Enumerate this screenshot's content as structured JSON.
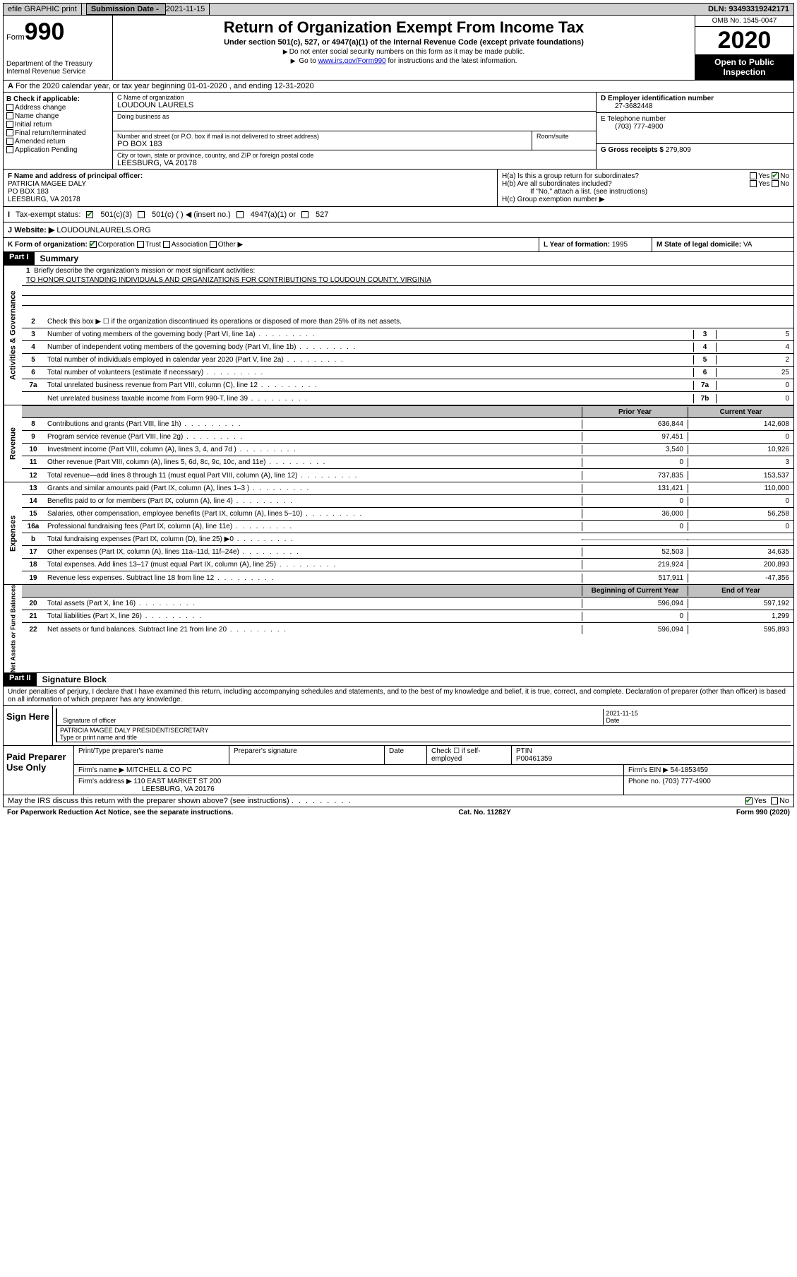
{
  "topbar": {
    "efile": "efile GRAPHIC print",
    "submission_label": "Submission Date - ",
    "submission_date": "2021-11-15",
    "dln_label": "DLN: ",
    "dln": "93493319242171"
  },
  "header": {
    "form_label": "Form",
    "form_num": "990",
    "dept": "Department of the Treasury\nInternal Revenue Service",
    "title": "Return of Organization Exempt From Income Tax",
    "subtitle": "Under section 501(c), 527, or 4947(a)(1) of the Internal Revenue Code (except private foundations)",
    "note1": "Do not enter social security numbers on this form as it may be made public.",
    "note2_pre": "Go to ",
    "note2_link": "www.irs.gov/Form990",
    "note2_post": " for instructions and the latest information.",
    "omb": "OMB No. 1545-0047",
    "year": "2020",
    "open": "Open to Public Inspection"
  },
  "row_a": {
    "text": "For the 2020 calendar year, or tax year beginning 01-01-2020    , and ending 12-31-2020"
  },
  "section_b": {
    "label": "B Check if applicable:",
    "opts": [
      "Address change",
      "Name change",
      "Initial return",
      "Final return/terminated",
      "Amended return",
      "Application Pending"
    ]
  },
  "section_c": {
    "name_label": "C Name of organization",
    "name": "LOUDOUN LAURELS",
    "dba_label": "Doing business as",
    "dba": "",
    "street_label": "Number and street (or P.O. box if mail is not delivered to street address)",
    "room_label": "Room/suite",
    "street": "PO BOX 183",
    "city_label": "City or town, state or province, country, and ZIP or foreign postal code",
    "city": "LEESBURG, VA  20178"
  },
  "section_d": {
    "ein_label": "D Employer identification number",
    "ein": "27-3682448",
    "phone_label": "E Telephone number",
    "phone": "(703) 777-4900",
    "gross_label": "G Gross receipts $ ",
    "gross": "279,809"
  },
  "section_f": {
    "label": "F  Name and address of principal officer:",
    "name": "PATRICIA MAGEE DALY",
    "addr1": "PO BOX 183",
    "addr2": "LEESBURG, VA  20178"
  },
  "section_h": {
    "ha": "H(a)  Is this a group return for subordinates?",
    "hb": "H(b)  Are all subordinates included?",
    "hb_note": "If \"No,\" attach a list. (see instructions)",
    "hc": "H(c)  Group exemption number ▶",
    "yes": "Yes",
    "no": "No"
  },
  "row_i": {
    "label": "Tax-exempt status:",
    "opt1": "501(c)(3)",
    "opt2": "501(c) (  ) ◀ (insert no.)",
    "opt3": "4947(a)(1) or",
    "opt4": "527"
  },
  "row_j": {
    "label": "Website: ▶",
    "val": "LOUDOUNLAURELS.ORG"
  },
  "row_k": {
    "label": "K Form of organization:",
    "opts": [
      "Corporation",
      "Trust",
      "Association",
      "Other ▶"
    ]
  },
  "row_l": {
    "label": "L Year of formation: ",
    "val": "1995"
  },
  "row_m": {
    "label": "M State of legal domicile: ",
    "val": "VA"
  },
  "parts": {
    "part1": "Part I",
    "summary": "Summary",
    "part2": "Part II",
    "sigblock": "Signature Block"
  },
  "summary": {
    "q1": "Briefly describe the organization's mission or most significant activities:",
    "mission": "TO HONOR OUTSTANDING INDIVIDUALS AND ORGANIZATIONS FOR CONTRIBUTIONS TO LOUDOUN COUNTY, VIRGINIA",
    "q2": "Check this box ▶ ☐  if the organization discontinued its operations or disposed of more than 25% of its net assets.",
    "lines": [
      {
        "n": "3",
        "t": "Number of voting members of the governing body (Part VI, line 1a)",
        "box": "3",
        "v": "5"
      },
      {
        "n": "4",
        "t": "Number of independent voting members of the governing body (Part VI, line 1b)",
        "box": "4",
        "v": "4"
      },
      {
        "n": "5",
        "t": "Total number of individuals employed in calendar year 2020 (Part V, line 2a)",
        "box": "5",
        "v": "2"
      },
      {
        "n": "6",
        "t": "Total number of volunteers (estimate if necessary)",
        "box": "6",
        "v": "25"
      },
      {
        "n": "7a",
        "t": "Total unrelated business revenue from Part VIII, column (C), line 12",
        "box": "7a",
        "v": "0"
      },
      {
        "n": "",
        "t": "Net unrelated business taxable income from Form 990-T, line 39",
        "box": "7b",
        "v": "0"
      }
    ],
    "col_prior": "Prior Year",
    "col_current": "Current Year",
    "revenue": [
      {
        "n": "8",
        "t": "Contributions and grants (Part VIII, line 1h)",
        "p": "636,844",
        "c": "142,608"
      },
      {
        "n": "9",
        "t": "Program service revenue (Part VIII, line 2g)",
        "p": "97,451",
        "c": "0"
      },
      {
        "n": "10",
        "t": "Investment income (Part VIII, column (A), lines 3, 4, and 7d )",
        "p": "3,540",
        "c": "10,926"
      },
      {
        "n": "11",
        "t": "Other revenue (Part VIII, column (A), lines 5, 6d, 8c, 9c, 10c, and 11e)",
        "p": "0",
        "c": "3"
      },
      {
        "n": "12",
        "t": "Total revenue—add lines 8 through 11 (must equal Part VIII, column (A), line 12)",
        "p": "737,835",
        "c": "153,537"
      }
    ],
    "expenses": [
      {
        "n": "13",
        "t": "Grants and similar amounts paid (Part IX, column (A), lines 1–3 )",
        "p": "131,421",
        "c": "110,000"
      },
      {
        "n": "14",
        "t": "Benefits paid to or for members (Part IX, column (A), line 4)",
        "p": "0",
        "c": "0"
      },
      {
        "n": "15",
        "t": "Salaries, other compensation, employee benefits (Part IX, column (A), lines 5–10)",
        "p": "36,000",
        "c": "56,258"
      },
      {
        "n": "16a",
        "t": "Professional fundraising fees (Part IX, column (A), line 11e)",
        "p": "0",
        "c": "0"
      },
      {
        "n": "b",
        "t": "Total fundraising expenses (Part IX, column (D), line 25) ▶0",
        "p": "",
        "c": "",
        "gray": true
      },
      {
        "n": "17",
        "t": "Other expenses (Part IX, column (A), lines 11a–11d, 11f–24e)",
        "p": "52,503",
        "c": "34,635"
      },
      {
        "n": "18",
        "t": "Total expenses. Add lines 13–17 (must equal Part IX, column (A), line 25)",
        "p": "219,924",
        "c": "200,893"
      },
      {
        "n": "19",
        "t": "Revenue less expenses. Subtract line 18 from line 12",
        "p": "517,911",
        "c": "-47,356"
      }
    ],
    "col_begin": "Beginning of Current Year",
    "col_end": "End of Year",
    "netassets": [
      {
        "n": "20",
        "t": "Total assets (Part X, line 16)",
        "p": "596,094",
        "c": "597,192"
      },
      {
        "n": "21",
        "t": "Total liabilities (Part X, line 26)",
        "p": "0",
        "c": "1,299"
      },
      {
        "n": "22",
        "t": "Net assets or fund balances. Subtract line 21 from line 20",
        "p": "596,094",
        "c": "595,893"
      }
    ],
    "sidebar1": "Activities & Governance",
    "sidebar2": "Revenue",
    "sidebar3": "Expenses",
    "sidebar4": "Net Assets or Fund Balances"
  },
  "sig": {
    "perjury": "Under penalties of perjury, I declare that I have examined this return, including accompanying schedules and statements, and to the best of my knowledge and belief, it is true, correct, and complete. Declaration of preparer (other than officer) is based on all information of which preparer has any knowledge.",
    "sign_here": "Sign Here",
    "sig_officer": "Signature of officer",
    "date_label": "Date",
    "sig_date": "2021-11-15",
    "officer_name": "PATRICIA MAGEE DALY PRESIDENT/SECRETARY",
    "type_name": "Type or print name and title",
    "paid": "Paid Preparer Use Only",
    "prep_name_label": "Print/Type preparer's name",
    "prep_sig_label": "Preparer's signature",
    "prep_date_label": "Date",
    "check_self": "Check ☐ if self-employed",
    "ptin_label": "PTIN",
    "ptin": "P00461359",
    "firm_name_label": "Firm's name    ▶",
    "firm_name": "MITCHELL & CO PC",
    "firm_ein_label": "Firm's EIN ▶",
    "firm_ein": "54-1853459",
    "firm_addr_label": "Firm's address ▶",
    "firm_addr1": "110 EAST MARKET ST 200",
    "firm_addr2": "LEESBURG, VA  20176",
    "firm_phone_label": "Phone no. ",
    "firm_phone": "(703) 777-4900",
    "discuss": "May the IRS discuss this return with the preparer shown above? (see instructions)",
    "yes": "Yes",
    "no": "No"
  },
  "footer": {
    "left": "For Paperwork Reduction Act Notice, see the separate instructions.",
    "center": "Cat. No. 11282Y",
    "right": "Form 990 (2020)"
  }
}
